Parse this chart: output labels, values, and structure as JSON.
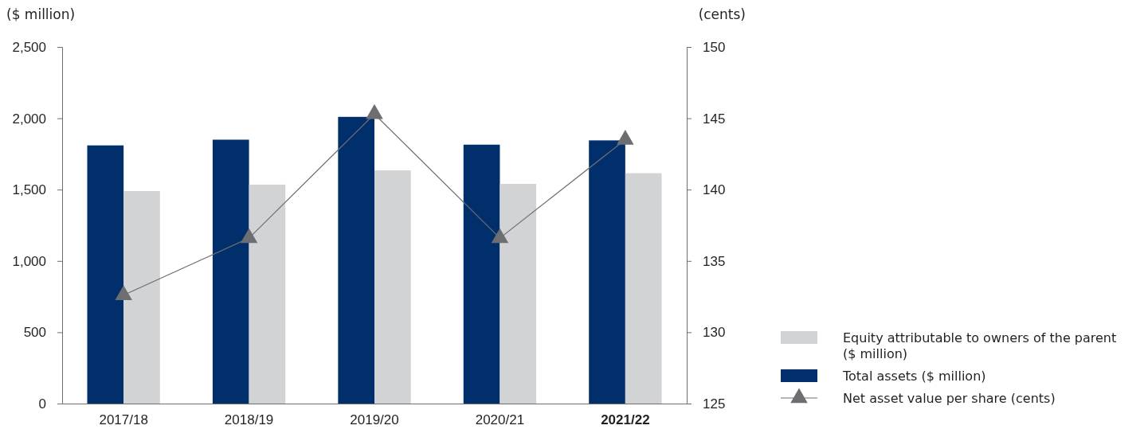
{
  "chart_data": {
    "type": "bar",
    "ylabel": "($ million)",
    "y2label": "(cents)",
    "categories": [
      "2017/18",
      "2018/19",
      "2019/20",
      "2020/21",
      "2021/22"
    ],
    "series": [
      {
        "name": "Total assets ($ million)",
        "color": "#002f6c",
        "values": [
          1810,
          1850,
          2010,
          1815,
          1845
        ]
      },
      {
        "name": "Equity attributable to owners of the parent ($ million)",
        "color": "#d1d3d4",
        "values": [
          1490,
          1535,
          1635,
          1540,
          1615
        ]
      },
      {
        "name": "Net asset value per share (cents)",
        "type": "line",
        "axis": "y2",
        "color": "#6d6e71",
        "marker": "triangle",
        "values": [
          132.6,
          136.6,
          145.3,
          136.6,
          143.5
        ]
      }
    ],
    "ylim": [
      0,
      2500
    ],
    "yticks": [
      {
        "value": 0,
        "label": "0"
      },
      {
        "value": 500,
        "label": "500"
      },
      {
        "value": 1000,
        "label": "1,000"
      },
      {
        "value": 1500,
        "label": "1,500"
      },
      {
        "value": 2000,
        "label": "2,000"
      },
      {
        "value": 2500,
        "label": "2,500"
      }
    ],
    "y2lim": [
      125,
      150
    ],
    "y2ticks": [
      125,
      130,
      135,
      140,
      145,
      150
    ],
    "grid": false,
    "legend": "bottom right"
  }
}
